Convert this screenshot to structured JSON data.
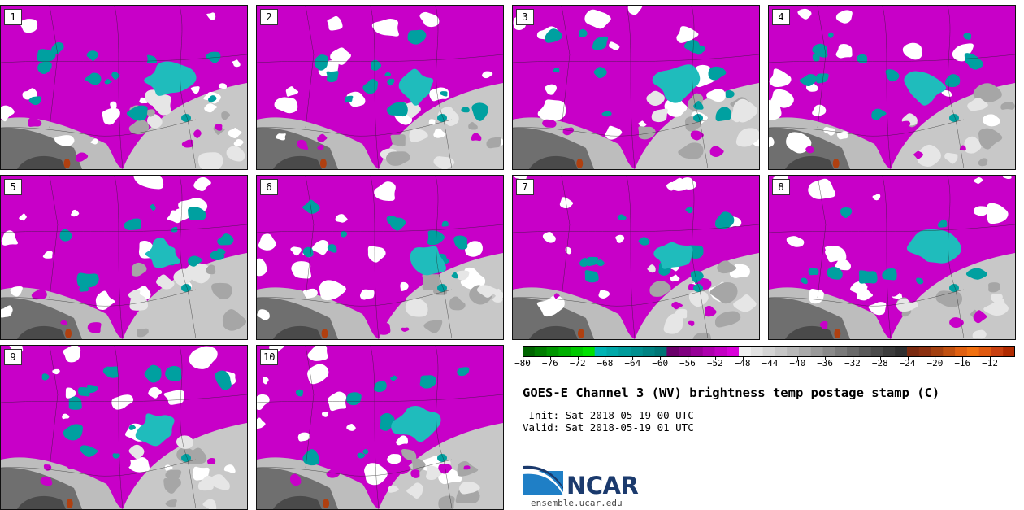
{
  "panels": [
    {
      "label": "1"
    },
    {
      "label": "2"
    },
    {
      "label": "3"
    },
    {
      "label": "4"
    },
    {
      "label": "5"
    },
    {
      "label": "6"
    },
    {
      "label": "7"
    },
    {
      "label": "8"
    },
    {
      "label": "9"
    },
    {
      "label": "10"
    }
  ],
  "colorbar": {
    "ticks": [
      "−80",
      "−76",
      "−72",
      "−68",
      "−64",
      "−60",
      "−56",
      "−52",
      "−48",
      "−44",
      "−40",
      "−36",
      "−32",
      "−28",
      "−24",
      "−20",
      "−16",
      "−12"
    ],
    "range": [
      -80,
      -10
    ],
    "colors": [
      "#006400",
      "#007d00",
      "#009600",
      "#00af00",
      "#00c800",
      "#00e100",
      "#00b4b4",
      "#00a8a8",
      "#009b9b",
      "#008f8f",
      "#008282",
      "#007575",
      "#6a006a",
      "#800080",
      "#960096",
      "#ad00ad",
      "#c300c3",
      "#d900d9",
      "#f0f0f0",
      "#e2e2e2",
      "#d4d4d4",
      "#c6c6c6",
      "#b8b8b8",
      "#aaaaaa",
      "#9a9a9a",
      "#8a8a8a",
      "#7a7a7a",
      "#6a6a6a",
      "#5a5a5a",
      "#4a4a4a",
      "#3c3c3c",
      "#303030",
      "#7a2a10",
      "#8c3010",
      "#a34010",
      "#c05010",
      "#e06010",
      "#f07010",
      "#e05a10",
      "#c84010",
      "#b02a00"
    ]
  },
  "title": "GOES-E Channel 3 (WV) brightness temp postage stamp (C)",
  "init_line": " Init: Sat 2018-05-19 00 UTC",
  "valid_line": "Valid: Sat 2018-05-19 01 UTC",
  "logo": {
    "text": "NCAR",
    "website": "ensemble.ucar.edu"
  },
  "palette": {
    "purple": "#c800c8",
    "teal": "#00a0a0",
    "white": "#ffffff",
    "gray": "#b0b0b0",
    "dark": "#5a5a5a",
    "brown": "#b04010"
  }
}
